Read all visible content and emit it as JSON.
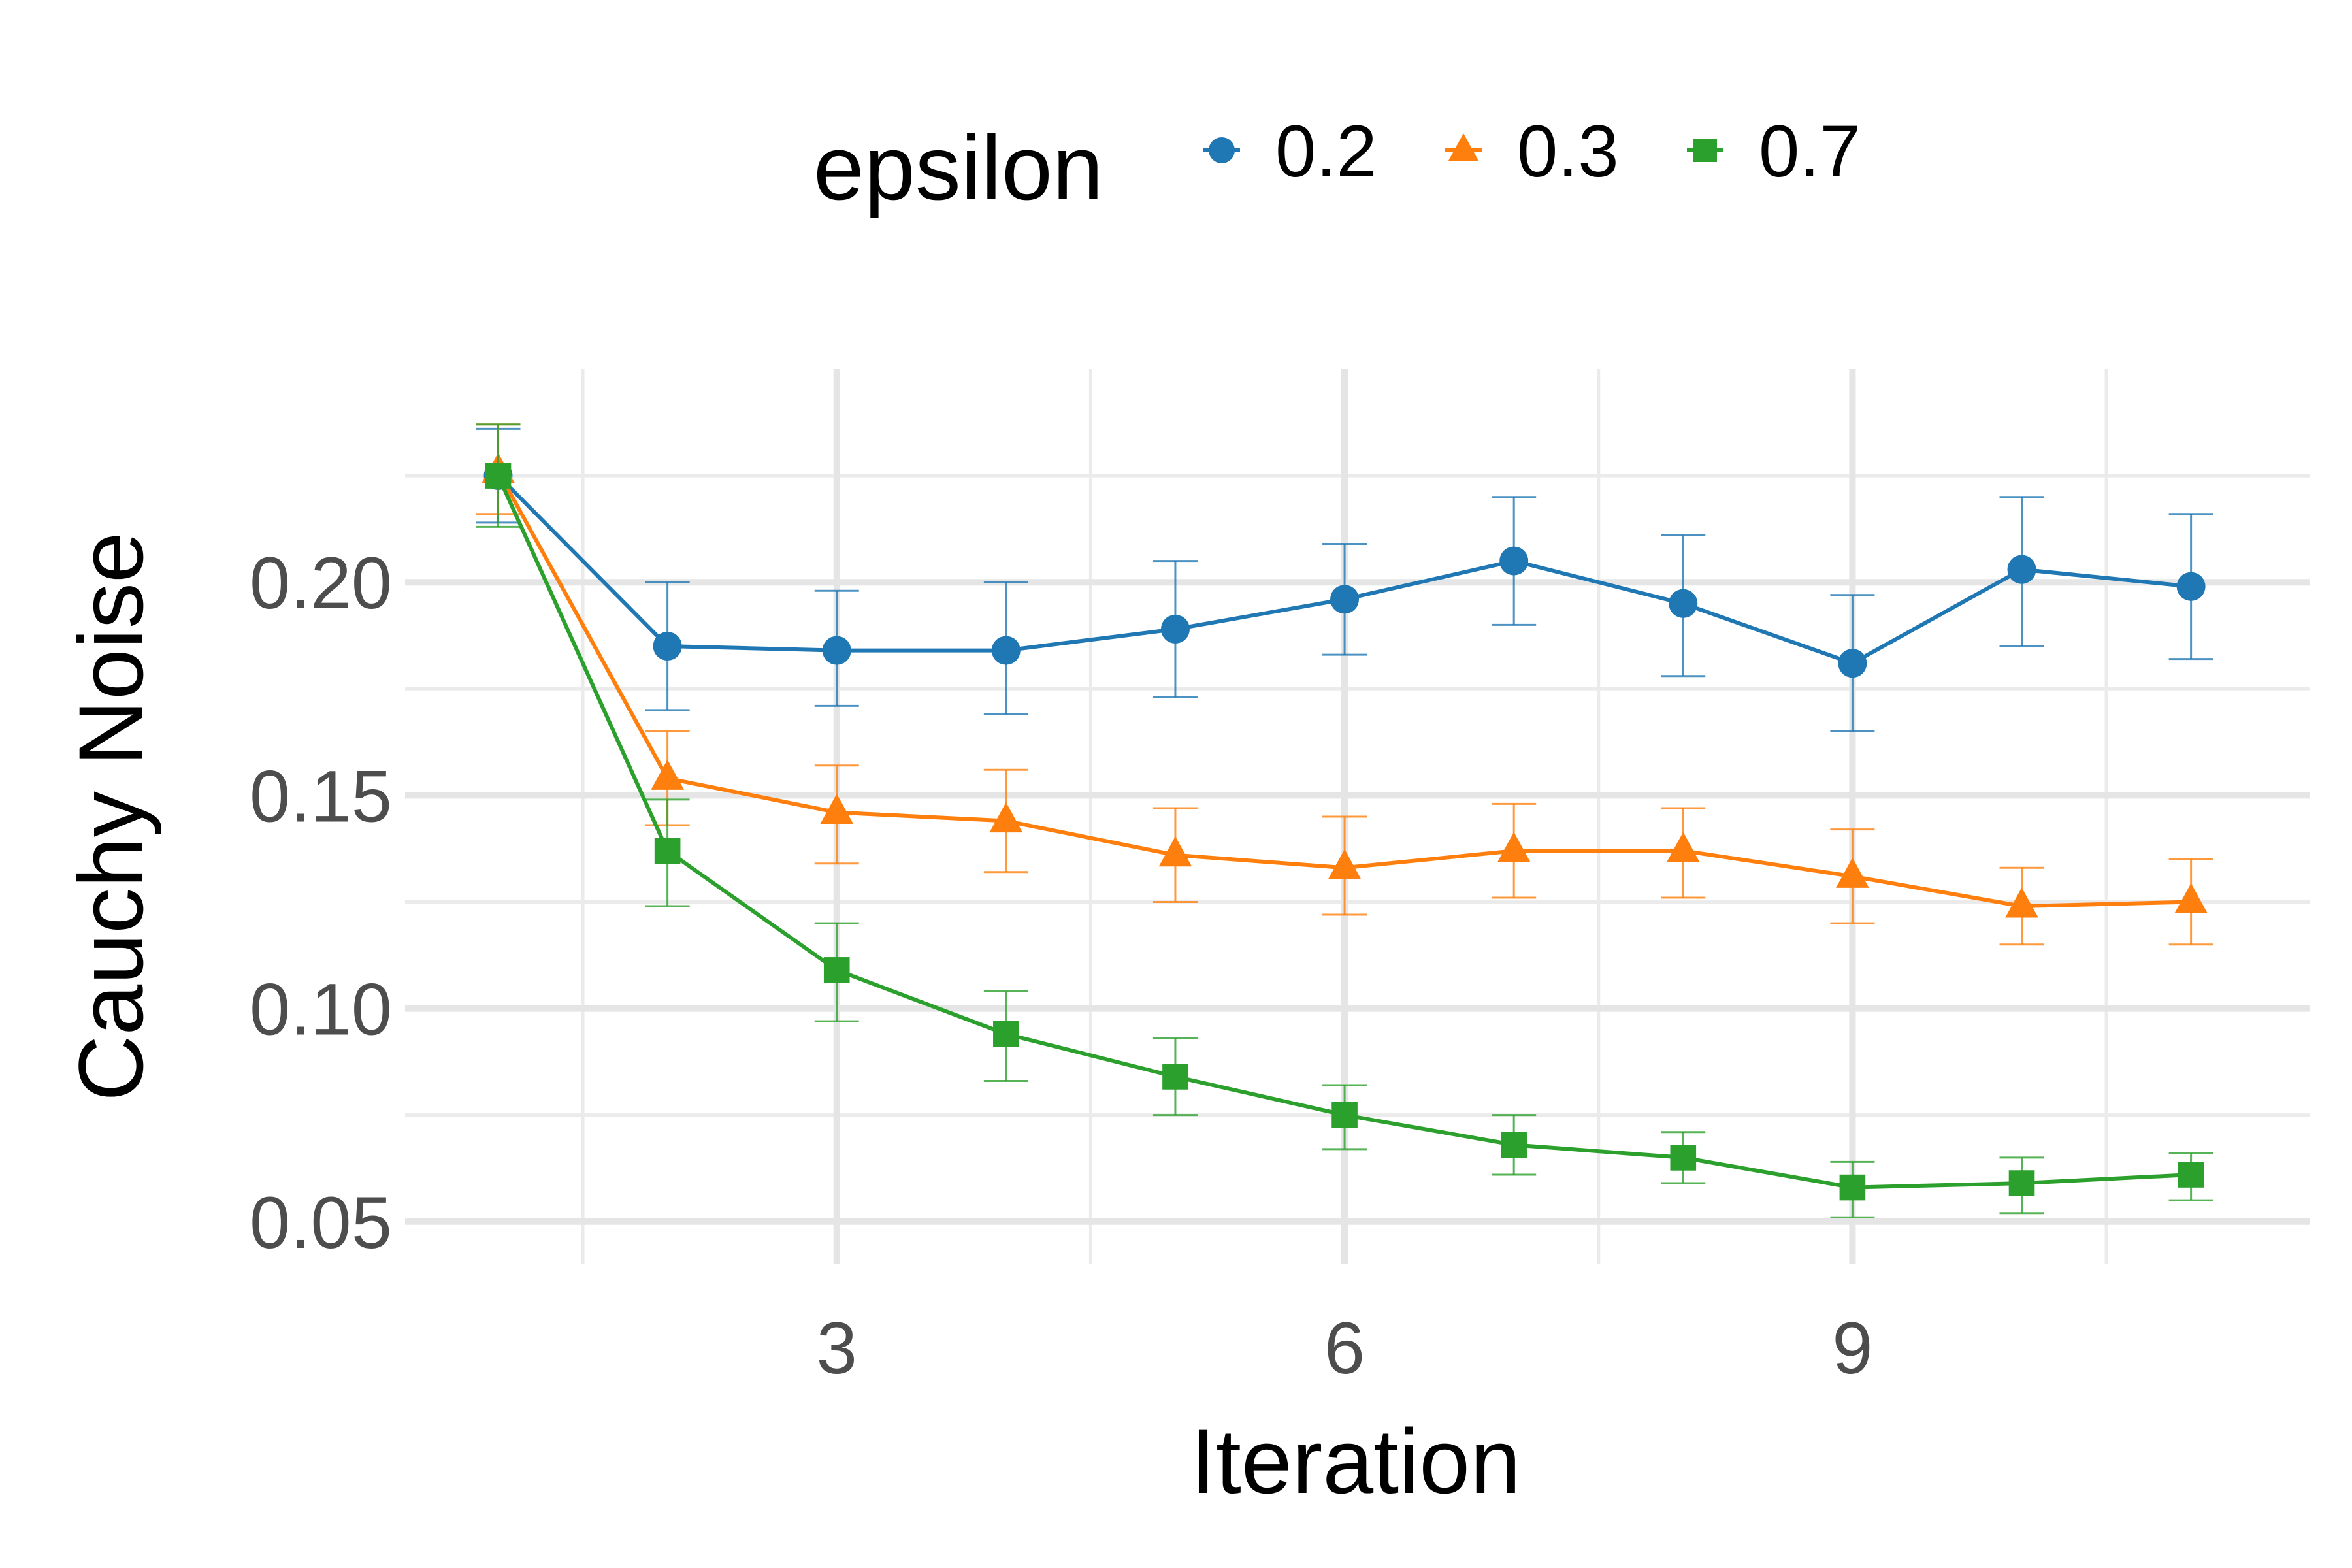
{
  "chart_data": {
    "type": "line",
    "xlabel": "Iteration",
    "ylabel": "Cauchy Noise",
    "xlim": [
      0.45,
      11.7
    ],
    "ylim": [
      0.04,
      0.25
    ],
    "x_ticks": [
      3,
      6,
      9
    ],
    "x_minor_ticks": [
      1.5,
      4.5,
      7.5,
      10.5
    ],
    "y_ticks": [
      0.05,
      0.1,
      0.15,
      0.2
    ],
    "y_tick_labels": [
      "0.05",
      "0.10",
      "0.15",
      "0.20"
    ],
    "y_minor_ticks": [
      0.075,
      0.125,
      0.175,
      0.225
    ],
    "x_tick_labels": [
      "3",
      "6",
      "9"
    ],
    "grid": true,
    "legend": {
      "title": "epsilon",
      "position": "top"
    },
    "x": [
      1,
      2,
      3,
      4,
      5,
      6,
      7,
      8,
      9,
      10,
      11
    ],
    "series": [
      {
        "name": "0.2",
        "color": "#1f77b4",
        "marker": "circle",
        "values": [
          0.225,
          0.185,
          0.184,
          0.184,
          0.189,
          0.196,
          0.205,
          0.195,
          0.181,
          0.203,
          0.199
        ],
        "error_low": [
          0.214,
          0.17,
          0.171,
          0.169,
          0.173,
          0.183,
          0.19,
          0.178,
          0.165,
          0.185,
          0.182
        ],
        "error_high": [
          0.236,
          0.2,
          0.198,
          0.2,
          0.205,
          0.209,
          0.22,
          0.211,
          0.197,
          0.22,
          0.216
        ]
      },
      {
        "name": "0.3",
        "color": "#ff7f0e",
        "marker": "triangle",
        "values": [
          0.226,
          0.154,
          0.146,
          0.144,
          0.136,
          0.133,
          0.137,
          0.137,
          0.131,
          0.124,
          0.125
        ],
        "error_low": [
          0.216,
          0.143,
          0.134,
          0.132,
          0.125,
          0.122,
          0.126,
          0.126,
          0.12,
          0.115,
          0.115
        ],
        "error_high": [
          0.237,
          0.165,
          0.157,
          0.156,
          0.147,
          0.145,
          0.148,
          0.147,
          0.142,
          0.133,
          0.135
        ]
      },
      {
        "name": "0.7",
        "color": "#2ca02c",
        "marker": "square",
        "values": [
          0.225,
          0.137,
          0.109,
          0.094,
          0.084,
          0.075,
          0.068,
          0.065,
          0.058,
          0.059,
          0.061
        ],
        "error_low": [
          0.213,
          0.124,
          0.097,
          0.083,
          0.075,
          0.067,
          0.061,
          0.059,
          0.051,
          0.052,
          0.055
        ],
        "error_high": [
          0.237,
          0.149,
          0.12,
          0.104,
          0.093,
          0.082,
          0.075,
          0.071,
          0.064,
          0.065,
          0.066
        ]
      }
    ]
  }
}
